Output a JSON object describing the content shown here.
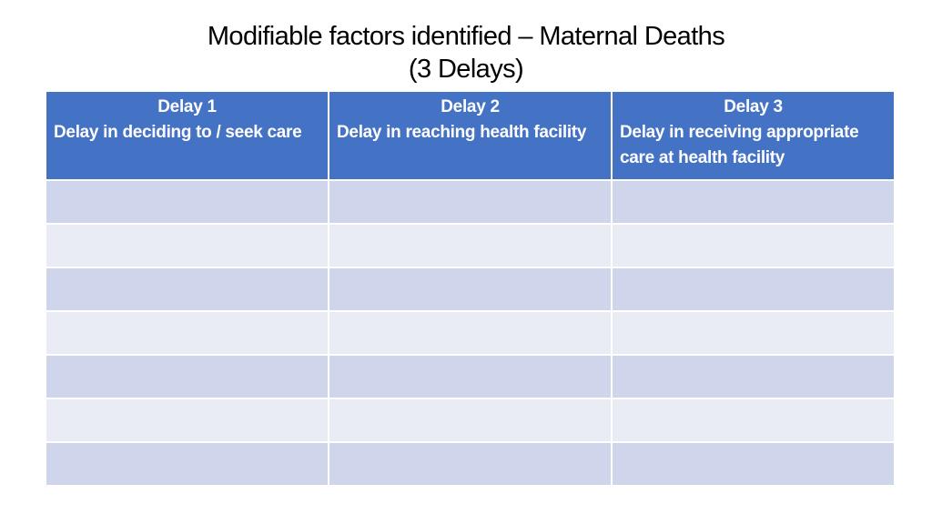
{
  "slide": {
    "title_line1": "Modifiable factors identified – Maternal Deaths",
    "title_line2": "(3 Delays)"
  },
  "table": {
    "columns": [
      {
        "title": "Delay 1",
        "description": "Delay in deciding to / seek care"
      },
      {
        "title": "Delay 2",
        "description": "Delay in reaching health facility"
      },
      {
        "title": "Delay 3",
        "description": "Delay in receiving appropriate care at health facility"
      }
    ],
    "rows": [
      [
        "",
        "",
        ""
      ],
      [
        "",
        "",
        ""
      ],
      [
        "",
        "",
        ""
      ],
      [
        "",
        "",
        ""
      ],
      [
        "",
        "",
        ""
      ],
      [
        "",
        "",
        ""
      ],
      [
        "",
        "",
        ""
      ]
    ]
  },
  "colors": {
    "header_bg": "#4472c4",
    "row_dark": "#cfd5ea",
    "row_light": "#e9ebf5"
  }
}
